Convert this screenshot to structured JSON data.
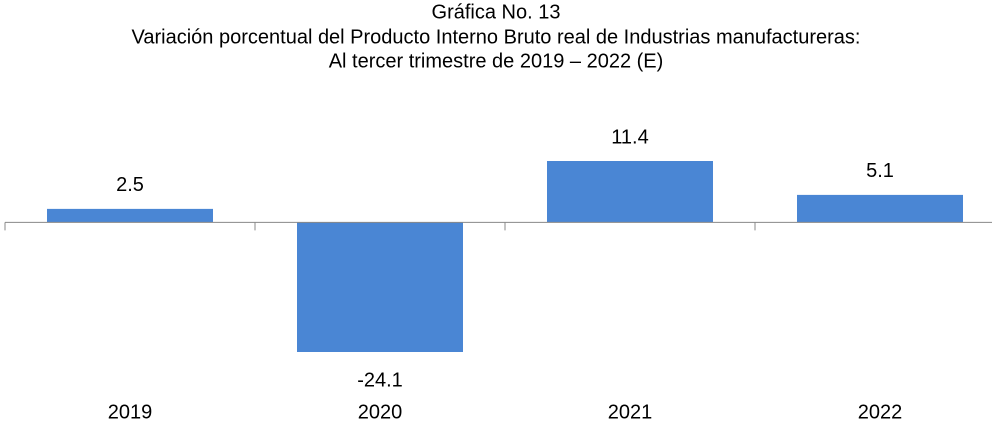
{
  "chart_data": {
    "type": "bar",
    "title": [
      "Gráfica No. 13",
      "Variación porcentual del Producto Interno Bruto real de Industrias manufactureras:",
      "Al tercer trimestre de 2019 – 2022 (E)"
    ],
    "categories": [
      "2019",
      "2020",
      "2021",
      "2022"
    ],
    "values": [
      2.5,
      -24.1,
      11.4,
      5.1
    ],
    "color": "#4a86d4"
  }
}
